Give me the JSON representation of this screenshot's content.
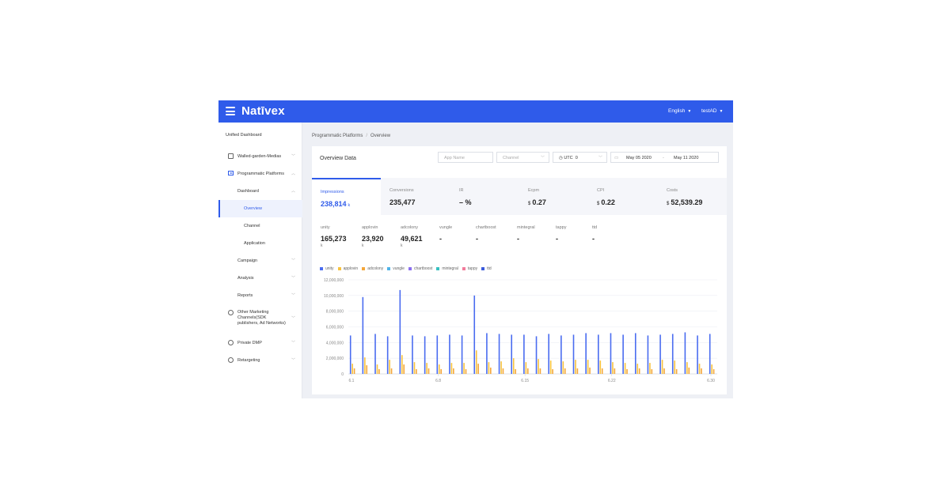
{
  "topbar": {
    "brand": "Natīvex",
    "language": "English",
    "user": "testAD"
  },
  "sidebar": {
    "unified": "Unified Dashboard",
    "items": [
      {
        "label": "Walled-garden-Medias",
        "icon": "media-icon"
      },
      {
        "label": "Programmatic Platforms",
        "icon": "play-icon"
      },
      {
        "label": "Dashboard"
      },
      {
        "label": "Overview"
      },
      {
        "label": "Channel"
      },
      {
        "label": "Application"
      },
      {
        "label": "Campaign"
      },
      {
        "label": "Analysis"
      },
      {
        "label": "Reports"
      },
      {
        "label": "Other Marketing Channels(SDK publishers, Ad Networks)",
        "icon": "people-icon"
      },
      {
        "label": "Private DMP",
        "icon": "dmp-icon"
      },
      {
        "label": "Retargeting",
        "icon": "retarget-icon"
      }
    ]
  },
  "breadcrumb": {
    "parent": "Programmatic Platforms",
    "separator": "/",
    "current": "Overview"
  },
  "panel": {
    "title": "Overview Data",
    "filters": {
      "app_placeholder": "App Name",
      "channel_placeholder": "Channel",
      "timezone_label": "UTC",
      "timezone_value": "0",
      "date_from": "May 05 2020",
      "date_sep": "-",
      "date_to": "May 11 2020"
    }
  },
  "metrics": [
    {
      "label": "Impressions",
      "value": "238,814",
      "unit": "k",
      "currency": ""
    },
    {
      "label": "Conversions",
      "value": "235,477",
      "unit": "",
      "currency": ""
    },
    {
      "label": "IR",
      "value": "– %",
      "unit": "",
      "currency": ""
    },
    {
      "label": "Ecpm",
      "value": "0.27",
      "unit": "",
      "currency": "$"
    },
    {
      "label": "CPI",
      "value": "0.22",
      "unit": "",
      "currency": "$"
    },
    {
      "label": "Costs",
      "value": "52,539.29",
      "unit": "",
      "currency": "$"
    }
  ],
  "networks": [
    {
      "label": "unity",
      "value": "165,273",
      "unit": "k"
    },
    {
      "label": "applovin",
      "value": "23,920",
      "unit": "k"
    },
    {
      "label": "adcolony",
      "value": "49,621",
      "unit": "k"
    },
    {
      "label": "vungle",
      "value": "-",
      "unit": ""
    },
    {
      "label": "chartboost",
      "value": "-",
      "unit": ""
    },
    {
      "label": "mintegral",
      "value": "-",
      "unit": ""
    },
    {
      "label": "tappy",
      "value": "-",
      "unit": ""
    },
    {
      "label": "ttd",
      "value": "-",
      "unit": ""
    }
  ],
  "colors": {
    "accent": "#2f5bea",
    "unity": "#4a6cf0",
    "applovin": "#f7c23e",
    "adcolony": "#f4a63a",
    "vungle": "#4fb3e8",
    "chartboost": "#8b6ff0",
    "mintegral": "#37c0c0",
    "tappy": "#f27b9b",
    "ttd": "#3b5bdb"
  },
  "chart_data": {
    "type": "bar",
    "legend": [
      "unity",
      "applovin",
      "adcolony",
      "vungle",
      "chartboost",
      "mintegral",
      "tappy",
      "ttd"
    ],
    "legend_position": "top-left",
    "x_tick_labels": [
      "6.1",
      "6.8",
      "6.15",
      "6.22",
      "6.30"
    ],
    "x_tick_days": [
      1,
      8,
      15,
      22,
      30
    ],
    "y_tick_labels": [
      "12,000,000",
      "10,000,000",
      "8,000,000",
      "6,000,000",
      "4,000,000",
      "2,000,000",
      "0"
    ],
    "ylim": [
      0,
      12000000
    ],
    "grid": true,
    "days": [
      1,
      2,
      3,
      4,
      5,
      6,
      7,
      8,
      9,
      10,
      11,
      12,
      13,
      14,
      15,
      16,
      17,
      18,
      19,
      20,
      21,
      22,
      23,
      24,
      25,
      26,
      27,
      28,
      29,
      30
    ],
    "series": [
      {
        "name": "unity",
        "values": [
          4900000,
          9800000,
          5100000,
          4800000,
          10700000,
          4900000,
          4800000,
          4900000,
          5000000,
          4900000,
          10000000,
          5200000,
          5100000,
          5000000,
          5000000,
          4800000,
          5100000,
          4900000,
          5000000,
          5200000,
          5000000,
          5200000,
          5000000,
          5200000,
          4900000,
          5000000,
          5100000,
          5300000,
          4900000,
          5100000
        ]
      },
      {
        "name": "applovin",
        "values": [
          1300000,
          2100000,
          1200000,
          1800000,
          2400000,
          1500000,
          1400000,
          1200000,
          1400000,
          1400000,
          3000000,
          1500000,
          1600000,
          2000000,
          1500000,
          1900000,
          1700000,
          1600000,
          1800000,
          1800000,
          1700000,
          1500000,
          1400000,
          1300000,
          1400000,
          1800000,
          1700000,
          1500000,
          1300000,
          1200000
        ]
      },
      {
        "name": "adcolony",
        "values": [
          700000,
          1100000,
          600000,
          700000,
          1200000,
          600000,
          700000,
          600000,
          700000,
          600000,
          1300000,
          800000,
          700000,
          600000,
          700000,
          700000,
          600000,
          700000,
          700000,
          800000,
          700000,
          700000,
          600000,
          700000,
          600000,
          700000,
          600000,
          800000,
          700000,
          600000
        ]
      }
    ]
  }
}
